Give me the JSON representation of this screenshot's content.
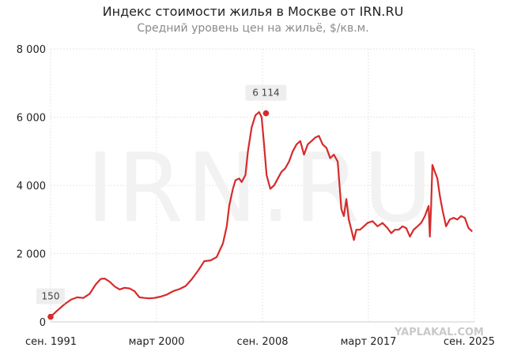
{
  "header": {
    "title": "Индекс стоимости жилья в Москве от IRN.RU",
    "subtitle": "Средний уровень цен на жильё, $/кв.м."
  },
  "watermarks": {
    "center": "IRN.RU",
    "corner": "YAPLAKAL.COM"
  },
  "colors": {
    "line": "#d62b2b",
    "grid": "#e6e6e6",
    "marker": "#d62b2b"
  },
  "chart_data": {
    "type": "line",
    "title": "Индекс стоимости жилья в Москве от IRN.RU",
    "subtitle": "Средний уровень цен на жильё, $/кв.м.",
    "xlabel": "",
    "ylabel": "",
    "ylim": [
      0,
      8000
    ],
    "yticks": [
      0,
      2000,
      4000,
      6000,
      8000
    ],
    "ytick_labels": [
      "0",
      "2 000",
      "4 000",
      "6 000",
      "8 000"
    ],
    "xlim": [
      1991.67,
      2025.67
    ],
    "xticks": [
      1991.67,
      2000.17,
      2008.67,
      2017.17,
      2025.67
    ],
    "xtick_labels": [
      "сен. 1991",
      "март 2000",
      "сен. 2008",
      "март 2017",
      "сен. 2025"
    ],
    "grid": true,
    "series": [
      {
        "x": [
          1991.67,
          1992.2,
          1992.8,
          1993.3,
          1993.8,
          1994.3,
          1994.8,
          1995.3,
          1995.7,
          1996.0,
          1996.4,
          1996.8,
          1997.2,
          1997.6,
          1998.0,
          1998.4,
          1998.8,
          1999.2,
          1999.6,
          2000.0,
          2000.5,
          2001.0,
          2001.5,
          2002.0,
          2002.5,
          2003.0,
          2003.5,
          2004.0,
          2004.5,
          2005.0,
          2005.5,
          2005.8,
          2006.0,
          2006.3,
          2006.5,
          2006.8,
          2007.0,
          2007.3,
          2007.5,
          2007.8,
          2008.1,
          2008.4,
          2008.6,
          2008.8,
          2009.0,
          2009.3,
          2009.6,
          2009.9,
          2010.2,
          2010.5,
          2010.8,
          2011.1,
          2011.4,
          2011.7,
          2012.0,
          2012.3,
          2012.6,
          2012.9,
          2013.2,
          2013.5,
          2013.8,
          2014.1,
          2014.4,
          2014.7,
          2015.0,
          2015.2,
          2015.4,
          2015.6,
          2015.8,
          2016.0,
          2016.2,
          2016.5,
          2016.8,
          2017.1,
          2017.5,
          2017.9,
          2018.3,
          2018.7,
          2019.0,
          2019.3,
          2019.6,
          2019.9,
          2020.2,
          2020.5,
          2020.8,
          2021.1,
          2021.4,
          2021.7,
          2022.0,
          2022.1,
          2022.2,
          2022.3,
          2022.5,
          2022.7,
          2022.9,
          2023.1,
          2023.4,
          2023.7,
          2024.0,
          2024.3,
          2024.6,
          2024.9,
          2025.2,
          2025.5
        ],
        "y": [
          150,
          330,
          520,
          650,
          720,
          700,
          820,
          1100,
          1260,
          1270,
          1180,
          1040,
          950,
          1000,
          980,
          900,
          720,
          700,
          690,
          700,
          740,
          800,
          900,
          960,
          1050,
          1250,
          1500,
          1780,
          1800,
          1900,
          2300,
          2800,
          3400,
          3900,
          4150,
          4200,
          4100,
          4300,
          5000,
          5700,
          6050,
          6150,
          6000,
          5200,
          4300,
          3900,
          4000,
          4200,
          4400,
          4500,
          4700,
          5000,
          5200,
          5300,
          4900,
          5200,
          5300,
          5400,
          5450,
          5200,
          5100,
          4800,
          4900,
          4700,
          3300,
          3100,
          3600,
          3000,
          2700,
          2400,
          2700,
          2700,
          2800,
          2900,
          2950,
          2800,
          2900,
          2750,
          2600,
          2700,
          2700,
          2800,
          2750,
          2500,
          2700,
          2800,
          2900,
          3100,
          3400,
          2500,
          3400,
          4600,
          4400,
          4200,
          3700,
          3300,
          2800,
          3000,
          3050,
          3000,
          3100,
          3050,
          2750,
          2650
        ],
        "color": "#d62b2b"
      }
    ],
    "annotations": [
      {
        "x": 1991.67,
        "y": 150,
        "label": "150"
      },
      {
        "x": 2008.95,
        "y": 6114,
        "label": "6 114"
      }
    ]
  }
}
